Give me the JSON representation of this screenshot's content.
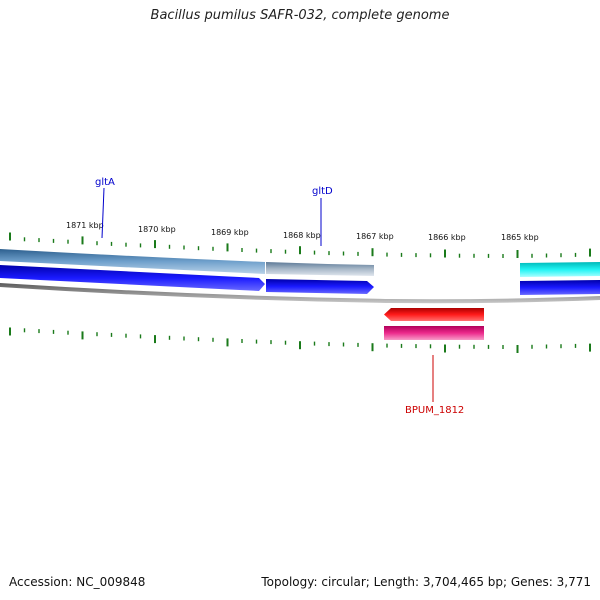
{
  "title": "Bacillus pumilus SAFR-032, complete genome",
  "footer": {
    "accession": "Accession: NC_009848",
    "summary": "Topology: circular; Length: 3,704,465 bp; Genes: 3,771"
  },
  "scale": {
    "unit": "kbp",
    "labels": [
      "1871 kbp",
      "1870 kbp",
      "1869 kbp",
      "1868 kbp",
      "1867 kbp",
      "1866 kbp",
      "1865 kbp"
    ]
  },
  "genes": [
    {
      "name": "gltA",
      "strand": "forward",
      "color": "#0000cc"
    },
    {
      "name": "gltD",
      "strand": "forward",
      "color": "#0000cc"
    },
    {
      "name": "BPUM_1812",
      "strand": "reverse",
      "color": "#cc0000"
    }
  ],
  "colors": {
    "forward_cds": "#0000ee",
    "reverse_cds": "#ee0000",
    "reverse_gene": "#e0107a",
    "gene_track_a": "#4a7fb0",
    "gene_track_b": "#9ab0c8",
    "cyan_feature": "#00e5e5",
    "backbone": "#808080",
    "ticks": "#1a7a1a"
  }
}
